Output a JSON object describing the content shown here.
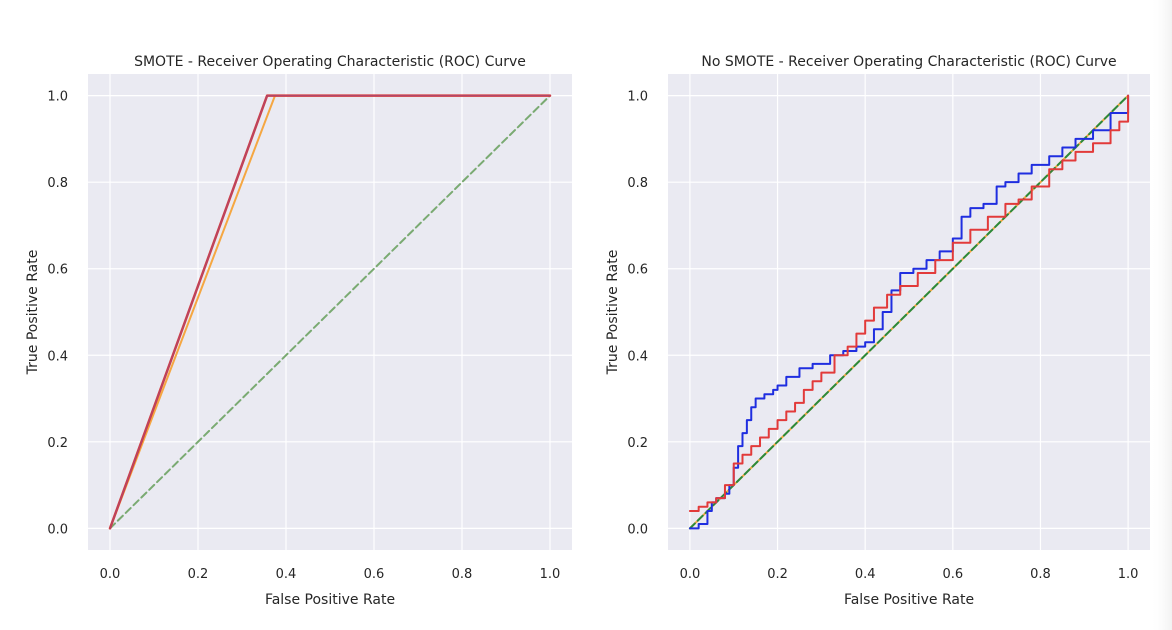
{
  "chart_data": [
    {
      "type": "line",
      "title": "SMOTE - Receiver Operating Characteristic (ROC) Curve",
      "xlabel": "False Positive Rate",
      "ylabel": "True Positive Rate",
      "xlim": [
        -0.05,
        1.05
      ],
      "ylim": [
        -0.05,
        1.05
      ],
      "xticks": [
        0.0,
        0.2,
        0.4,
        0.6,
        0.8,
        1.0
      ],
      "yticks": [
        0.0,
        0.2,
        0.4,
        0.6,
        0.8,
        1.0
      ],
      "tick_labels": [
        "0.0",
        "0.2",
        "0.4",
        "0.6",
        "0.8",
        "1.0"
      ],
      "grid": true,
      "series": [
        {
          "color": "#7aaa72",
          "dash": "dashed",
          "width": 2,
          "x": [
            0,
            1
          ],
          "y": [
            0,
            1
          ]
        },
        {
          "color": "#f5a742",
          "dash": "solid",
          "width": 2,
          "x": [
            0,
            0.375,
            1.0
          ],
          "y": [
            0,
            1.0,
            1.0
          ]
        },
        {
          "color": "#d43d3d",
          "dash": "solid",
          "width": 2.5,
          "x": [
            0,
            0.357,
            1.0
          ],
          "y": [
            0,
            1.0,
            1.0
          ]
        },
        {
          "color": "#b3456a",
          "dash": "solid",
          "width": 1.2,
          "x": [
            0,
            0.357,
            1.0
          ],
          "y": [
            0,
            1.0,
            1.0
          ]
        }
      ]
    },
    {
      "type": "line",
      "title": "No SMOTE - Receiver Operating Characteristic (ROC) Curve",
      "xlabel": "False Positive Rate",
      "ylabel": "True Positive Rate",
      "xlim": [
        -0.05,
        1.05
      ],
      "ylim": [
        -0.05,
        1.05
      ],
      "xticks": [
        0.0,
        0.2,
        0.4,
        0.6,
        0.8,
        1.0
      ],
      "yticks": [
        0.0,
        0.2,
        0.4,
        0.6,
        0.8,
        1.0
      ],
      "tick_labels": [
        "0.0",
        "0.2",
        "0.4",
        "0.6",
        "0.8",
        "1.0"
      ],
      "grid": true,
      "series": [
        {
          "color": "#f5a742",
          "dash": "solid",
          "width": 2,
          "x": [
            0,
            1
          ],
          "y": [
            0,
            1
          ]
        },
        {
          "color": "#2a8a3c",
          "dash": "dashed",
          "width": 2,
          "x": [
            0,
            1
          ],
          "y": [
            0,
            1
          ]
        },
        {
          "color": "#1f2ee0",
          "dash": "solid",
          "width": 2,
          "step": true,
          "x": [
            0,
            0.02,
            0.04,
            0.05,
            0.06,
            0.08,
            0.09,
            0.1,
            0.11,
            0.12,
            0.13,
            0.14,
            0.15,
            0.17,
            0.19,
            0.2,
            0.22,
            0.25,
            0.28,
            0.32,
            0.35,
            0.38,
            0.4,
            0.42,
            0.44,
            0.46,
            0.48,
            0.51,
            0.54,
            0.57,
            0.6,
            0.62,
            0.64,
            0.67,
            0.7,
            0.72,
            0.75,
            0.78,
            0.82,
            0.85,
            0.88,
            0.92,
            0.96,
            1.0
          ],
          "y": [
            0,
            0.01,
            0.04,
            0.06,
            0.07,
            0.08,
            0.1,
            0.14,
            0.19,
            0.22,
            0.25,
            0.28,
            0.3,
            0.31,
            0.32,
            0.33,
            0.35,
            0.37,
            0.38,
            0.4,
            0.41,
            0.42,
            0.43,
            0.46,
            0.5,
            0.55,
            0.59,
            0.6,
            0.62,
            0.64,
            0.67,
            0.72,
            0.74,
            0.75,
            0.79,
            0.8,
            0.82,
            0.84,
            0.86,
            0.88,
            0.9,
            0.92,
            0.96,
            1.0
          ]
        },
        {
          "color": "#e23a3a",
          "dash": "solid",
          "width": 2,
          "step": true,
          "x": [
            0,
            0.02,
            0.04,
            0.06,
            0.08,
            0.1,
            0.12,
            0.14,
            0.16,
            0.18,
            0.2,
            0.22,
            0.24,
            0.26,
            0.28,
            0.3,
            0.33,
            0.36,
            0.38,
            0.4,
            0.42,
            0.45,
            0.48,
            0.52,
            0.56,
            0.6,
            0.64,
            0.68,
            0.72,
            0.75,
            0.78,
            0.82,
            0.85,
            0.88,
            0.92,
            0.96,
            0.98,
            1.0
          ],
          "y": [
            0.04,
            0.05,
            0.06,
            0.07,
            0.1,
            0.15,
            0.17,
            0.19,
            0.21,
            0.23,
            0.25,
            0.27,
            0.29,
            0.32,
            0.34,
            0.36,
            0.4,
            0.42,
            0.45,
            0.48,
            0.51,
            0.54,
            0.56,
            0.59,
            0.62,
            0.66,
            0.69,
            0.72,
            0.75,
            0.76,
            0.79,
            0.83,
            0.85,
            0.87,
            0.89,
            0.92,
            0.94,
            1.0
          ]
        }
      ]
    }
  ]
}
